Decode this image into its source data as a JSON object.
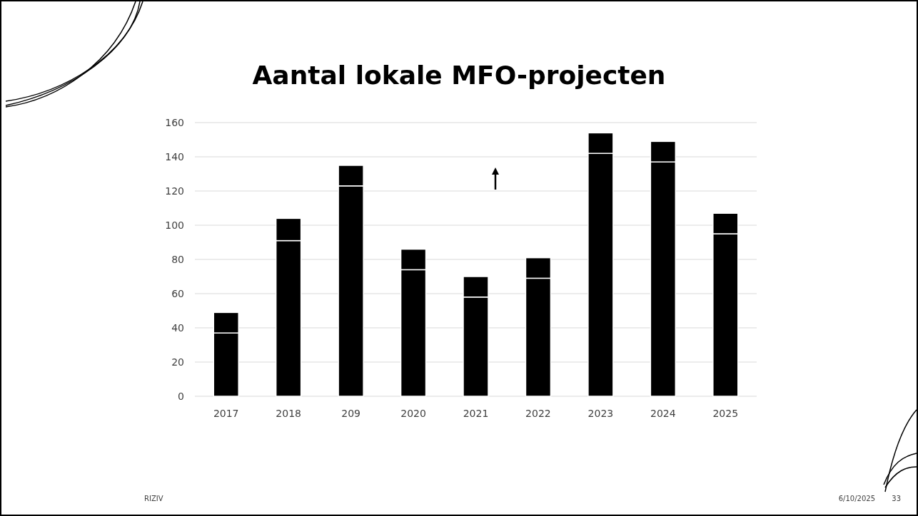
{
  "chart_data": {
    "type": "bar",
    "title": "Aantal lokale MFO-projecten",
    "categories": [
      "2017",
      "2018",
      "209",
      "2020",
      "2021",
      "2022",
      "2023",
      "2024",
      "2025"
    ],
    "series": [
      {
        "color": "#000000",
        "values": [
          37,
          91,
          123,
          74,
          58,
          69,
          142,
          137,
          95
        ]
      },
      {
        "color": "#000000",
        "values": [
          12,
          13,
          12,
          12,
          12,
          12,
          12,
          12,
          12
        ]
      }
    ],
    "stacked": true,
    "ylim": [
      0,
      160
    ],
    "yticks": [
      0,
      20,
      40,
      60,
      80,
      100,
      120,
      140,
      160
    ],
    "grid": "y",
    "annotations": [
      "RIZIV",
      "6/10/2025",
      "33"
    ]
  }
}
